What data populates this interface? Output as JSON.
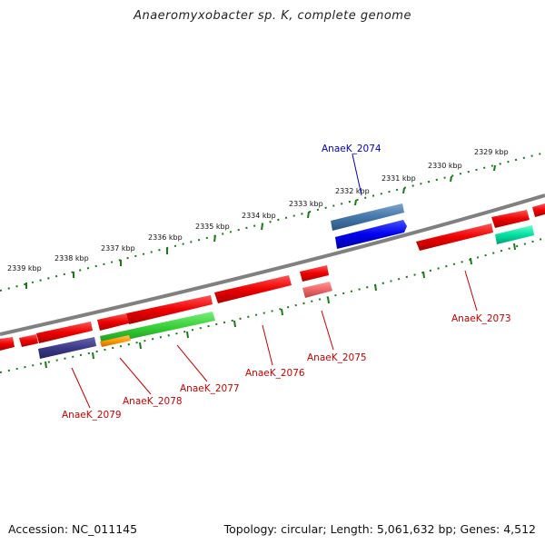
{
  "title": "Anaeromyxobacter sp. K, complete genome",
  "footer": {
    "accession": "Accession: NC_011145",
    "summary": "Topology: circular; Length: 5,061,632 bp; Genes: 4,512"
  },
  "ticks": [
    {
      "label": "2329 kbp"
    },
    {
      "label": "2330 kbp"
    },
    {
      "label": "2331 kbp"
    },
    {
      "label": "2332 kbp"
    },
    {
      "label": "2333 kbp"
    },
    {
      "label": "2334 kbp"
    },
    {
      "label": "2335 kbp"
    },
    {
      "label": "2336 kbp"
    },
    {
      "label": "2337 kbp"
    },
    {
      "label": "2338 kbp"
    },
    {
      "label": "2339 kbp"
    }
  ],
  "genes": [
    {
      "id": "AnaeK_2073",
      "label": "AnaeK_2073",
      "color": "#ee0000"
    },
    {
      "id": "AnaeK_2074",
      "label": "AnaeK_2074",
      "color": "#4477aa"
    },
    {
      "id": "AnaeK_2075",
      "label": "AnaeK_2075",
      "color": "#ee0000"
    },
    {
      "id": "AnaeK_2076",
      "label": "AnaeK_2076",
      "color": "#ee0000"
    },
    {
      "id": "AnaeK_2077",
      "label": "AnaeK_2077",
      "color": "#ee0000"
    },
    {
      "id": "AnaeK_2078",
      "label": "AnaeK_2078",
      "color": "#ee0000"
    },
    {
      "id": "AnaeK_2079",
      "label": "AnaeK_2079",
      "color": "#ee0000"
    }
  ],
  "colors": {
    "cds": "#ee0000",
    "label_red": "#cc0000",
    "label_blue": "#0000cc",
    "backbone": "#808080",
    "tick": "#1a7a1a",
    "blue_feature": "#0000ee",
    "steel_feature": "#4477aa",
    "teal_feature": "#00e0a0",
    "green_feature": "#33cc33",
    "orange_feature": "#ff9900",
    "navy_feature": "#3a3a8a",
    "pink_feature": "#ee6666"
  }
}
